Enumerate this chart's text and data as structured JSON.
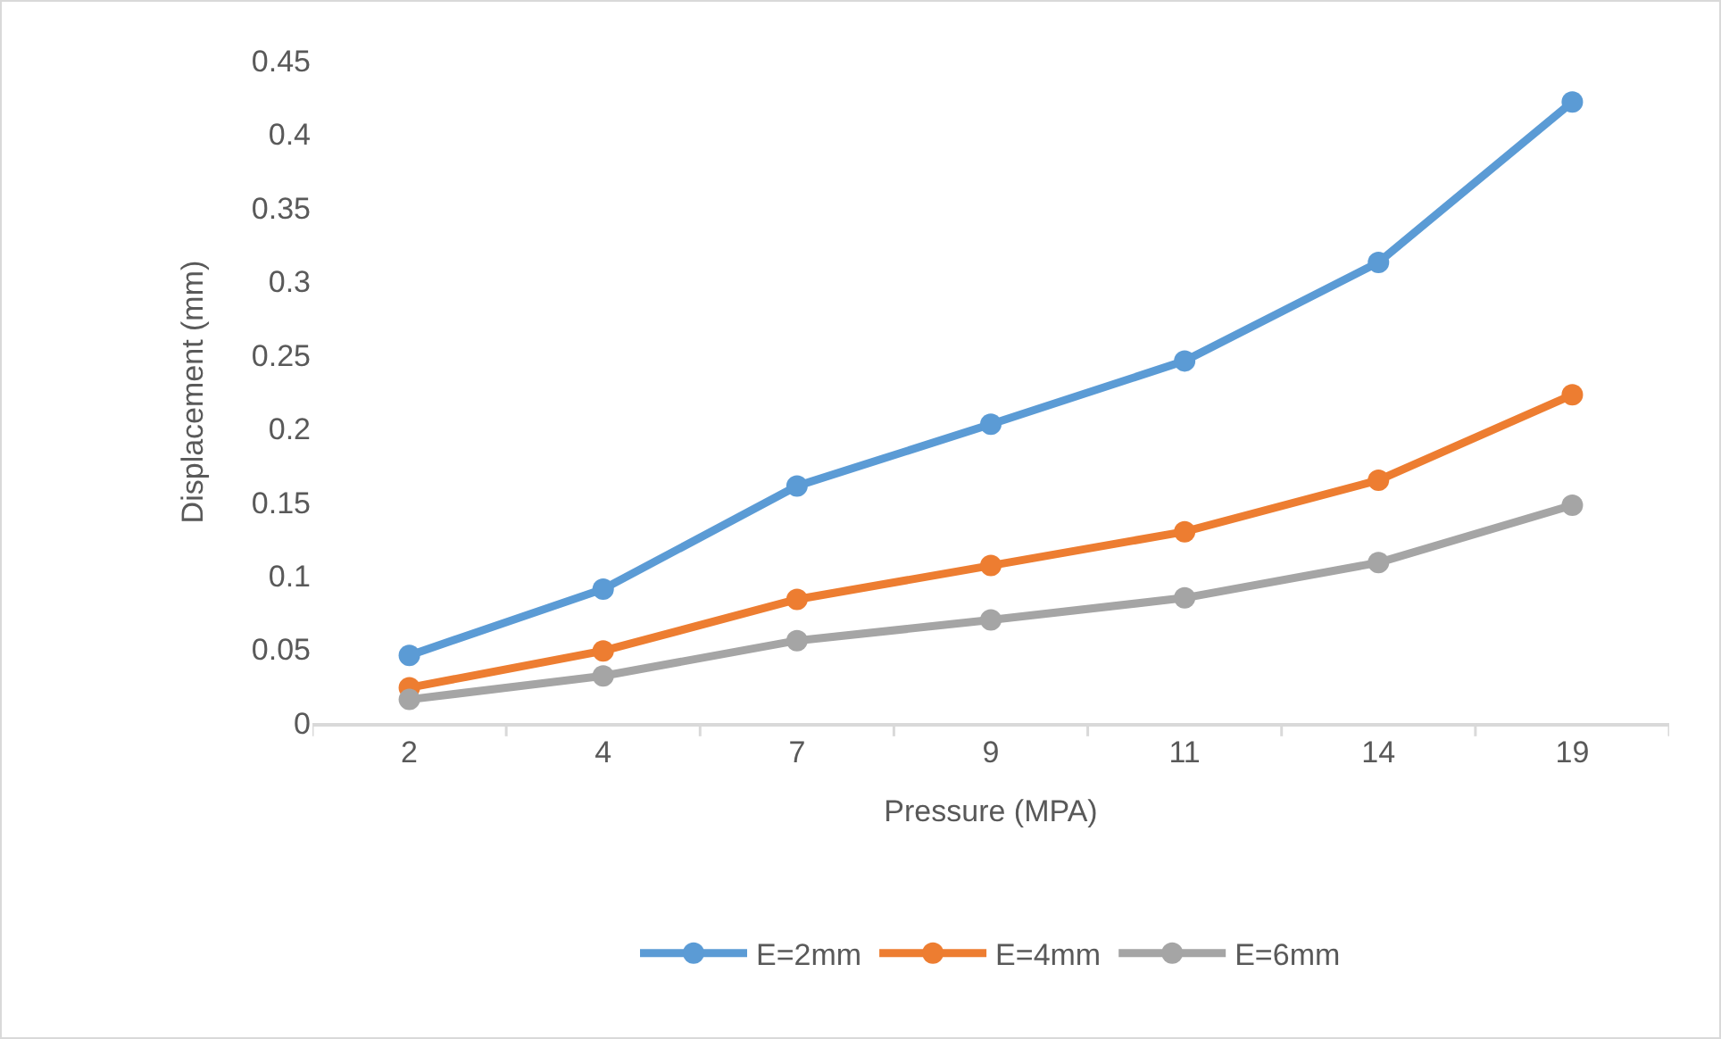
{
  "chart_data": {
    "type": "line",
    "xlabel": "Pressure (MPA)",
    "ylabel": "Displacement (mm)",
    "categories": [
      "2",
      "4",
      "7",
      "9",
      "11",
      "14",
      "19"
    ],
    "series": [
      {
        "name": "E=2mm",
        "color": "#5b9bd5",
        "values": [
          0.046,
          0.091,
          0.161,
          0.203,
          0.246,
          0.313,
          0.422
        ]
      },
      {
        "name": "E=4mm",
        "color": "#ed7d31",
        "values": [
          0.024,
          0.049,
          0.084,
          0.107,
          0.13,
          0.165,
          0.223
        ]
      },
      {
        "name": "E=6mm",
        "color": "#a5a5a5",
        "values": [
          0.016,
          0.032,
          0.056,
          0.07,
          0.085,
          0.109,
          0.148
        ]
      }
    ],
    "ylim": [
      0,
      0.45
    ],
    "yticks": [
      0,
      0.05,
      0.1,
      0.15,
      0.2,
      0.25,
      0.3,
      0.35,
      0.4,
      0.45
    ],
    "grid": false,
    "legend": "bottom",
    "marker": "circle",
    "line_style": "solid"
  }
}
